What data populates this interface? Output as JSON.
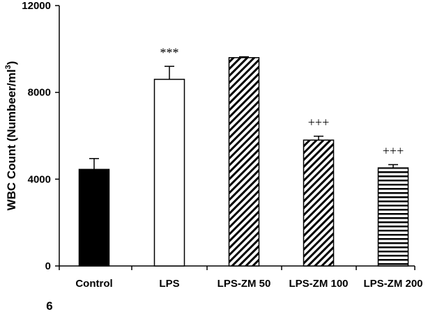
{
  "chart_data": {
    "type": "bar",
    "categories": [
      "Control",
      "LPS",
      "LPS-ZM 50",
      "LPS-ZM 100",
      "LPS-ZM 200"
    ],
    "values": [
      4450,
      8600,
      9600,
      5800,
      4520
    ],
    "errors": [
      500,
      600,
      40,
      180,
      150
    ],
    "annotations": [
      "",
      "***",
      "",
      "+++",
      "+++"
    ],
    "fills": [
      "solid-black",
      "white",
      "diagonal-hatch",
      "diagonal-hatch",
      "horizontal-hatch"
    ],
    "ylabel_main": "WBC Count (Numbeer/ml",
    "ylabel_sup": "3",
    "ylabel_close": ")",
    "yticks": [
      "0",
      "4000",
      "8000",
      "12000"
    ],
    "ytick_values": [
      0,
      4000,
      8000,
      12000
    ],
    "ylim": [
      0,
      12000
    ],
    "grid": false,
    "legend": "none",
    "colors": {
      "bar_solid": "#000000",
      "bar_outline": "#000000",
      "background": "#ffffff"
    }
  },
  "footer": {
    "panel_label": "6"
  }
}
